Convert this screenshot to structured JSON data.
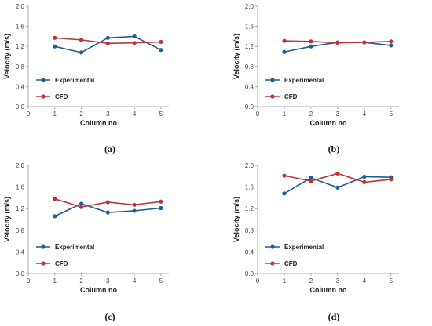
{
  "chart_data": [
    {
      "type": "line",
      "panel_label": "(a)",
      "x": [
        1,
        2,
        3,
        4,
        5
      ],
      "xticks": [
        0,
        1,
        2,
        3,
        4,
        5
      ],
      "yticks": [
        "0.0",
        "0.4",
        "0.8",
        "1.2",
        "1.6",
        "2.0"
      ],
      "xlabel": "Column no",
      "ylabel": "Velocity (m/s)",
      "xlim": [
        0,
        5.3
      ],
      "ylim": [
        0,
        2.0
      ],
      "grid": false,
      "legend_position": "bottom-left",
      "series": [
        {
          "name": "Experimental",
          "color": "#1f5e96",
          "values": [
            1.2,
            1.08,
            1.37,
            1.4,
            1.13
          ]
        },
        {
          "name": "CFD",
          "color": "#b8363b",
          "values": [
            1.37,
            1.33,
            1.26,
            1.27,
            1.29
          ]
        }
      ]
    },
    {
      "type": "line",
      "panel_label": "(b)",
      "x": [
        1,
        2,
        3,
        4,
        5
      ],
      "xticks": [
        0,
        1,
        2,
        3,
        4,
        5
      ],
      "yticks": [
        "0.0",
        "0.4",
        "0.8",
        "1.2",
        "1.6",
        "2.0"
      ],
      "xlabel": "Column no",
      "ylabel": "Velocity (m/s)",
      "xlim": [
        0,
        5.3
      ],
      "ylim": [
        0,
        2.0
      ],
      "grid": false,
      "legend_position": "bottom-left",
      "series": [
        {
          "name": "Experimental",
          "color": "#1f5e96",
          "values": [
            1.09,
            1.2,
            1.28,
            1.28,
            1.22
          ]
        },
        {
          "name": "CFD",
          "color": "#b8363b",
          "values": [
            1.31,
            1.3,
            1.27,
            1.28,
            1.3
          ]
        }
      ]
    },
    {
      "type": "line",
      "panel_label": "(c)",
      "x": [
        1,
        2,
        3,
        4,
        5
      ],
      "xticks": [
        0,
        1,
        2,
        3,
        4,
        5
      ],
      "yticks": [
        "0.0",
        "0.4",
        "0.8",
        "1.2",
        "1.6",
        "2.0"
      ],
      "xlabel": "Column no",
      "ylabel": "Velocity (m/s)",
      "xlim": [
        0,
        5.3
      ],
      "ylim": [
        0,
        2.0
      ],
      "grid": false,
      "legend_position": "bottom-left",
      "series": [
        {
          "name": "Experimental",
          "color": "#1f5e96",
          "values": [
            1.06,
            1.29,
            1.13,
            1.16,
            1.21
          ]
        },
        {
          "name": "CFD",
          "color": "#b8363b",
          "values": [
            1.38,
            1.23,
            1.32,
            1.27,
            1.33
          ]
        }
      ]
    },
    {
      "type": "line",
      "panel_label": "(d)",
      "x": [
        1,
        2,
        3,
        4,
        5
      ],
      "xticks": [
        0,
        1,
        2,
        3,
        4,
        5
      ],
      "yticks": [
        "0.0",
        "0.4",
        "0.8",
        "1.2",
        "1.6",
        "2.0"
      ],
      "xlabel": "Column no",
      "ylabel": "Velocity (m/s)",
      "xlim": [
        0,
        5.3
      ],
      "ylim": [
        0,
        2.0
      ],
      "grid": false,
      "legend_position": "bottom-left",
      "series": [
        {
          "name": "Experimental",
          "color": "#1f5e96",
          "values": [
            1.48,
            1.77,
            1.59,
            1.79,
            1.78
          ]
        },
        {
          "name": "CFD",
          "color": "#b8363b",
          "values": [
            1.81,
            1.71,
            1.85,
            1.69,
            1.74
          ]
        }
      ]
    }
  ]
}
